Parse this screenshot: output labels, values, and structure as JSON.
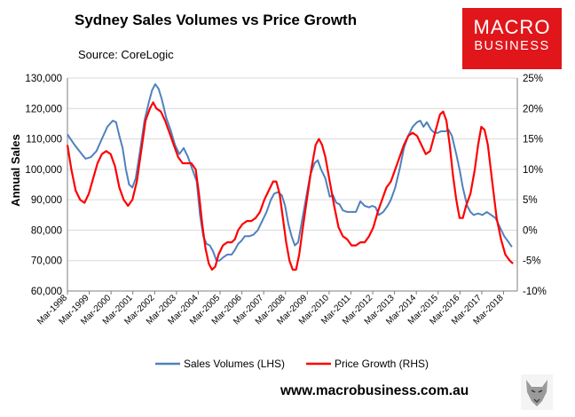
{
  "header": {
    "title": "Sydney Sales Volumes vs Price Growth",
    "source": "Source: CoreLogic"
  },
  "logo": {
    "line1": "MACRO",
    "line2": "BUSINESS"
  },
  "footer": {
    "url": "www.macrobusiness.com.au"
  },
  "colors": {
    "sales": "#4f81bd",
    "price": "#ff0000",
    "grid": "#d9d9d9",
    "axis": "#7f7f7f"
  },
  "chart_data": {
    "type": "line",
    "title": "Sydney Sales Volumes vs Price Growth",
    "ylabel": "Annual Sales",
    "y_left": {
      "min": 60000,
      "max": 130000,
      "step": 10000,
      "tick_labels": [
        "60,000",
        "70,000",
        "80,000",
        "90,000",
        "100,000",
        "110,000",
        "120,000",
        "130,000"
      ]
    },
    "y_right": {
      "min": -10,
      "max": 25,
      "step": 5,
      "tick_labels": [
        "-10%",
        "-5%",
        "0%",
        "5%",
        "10%",
        "15%",
        "20%",
        "25%"
      ]
    },
    "x_range": [
      1998.17,
      2018.8
    ],
    "x_tick_labels": [
      "Mar-1998",
      "Mar-1999",
      "Mar-2000",
      "Mar-2001",
      "Mar-2002",
      "Mar-2003",
      "Mar-2004",
      "Mar-2005",
      "Mar-2006",
      "Mar-2007",
      "Mar-2008",
      "Mar-2009",
      "Mar-2010",
      "Mar-2011",
      "Mar-2012",
      "Mar-2013",
      "Mar-2014",
      "Mar-2015",
      "Mar-2016",
      "Mar-2017",
      "Mar-2018"
    ],
    "gridlines": true,
    "legend_position": "bottom",
    "series": [
      {
        "name": "Sales Volumes (LHS)",
        "axis": "left",
        "points": [
          [
            1998.17,
            111500
          ],
          [
            1998.5,
            108000
          ],
          [
            1998.83,
            105000
          ],
          [
            1999.0,
            103500
          ],
          [
            1999.25,
            104000
          ],
          [
            1999.5,
            106000
          ],
          [
            1999.75,
            110000
          ],
          [
            2000.0,
            114000
          ],
          [
            2000.25,
            116000
          ],
          [
            2000.4,
            115500
          ],
          [
            2000.55,
            111000
          ],
          [
            2000.7,
            107000
          ],
          [
            2000.85,
            100000
          ],
          [
            2001.0,
            95000
          ],
          [
            2001.15,
            94000
          ],
          [
            2001.3,
            97000
          ],
          [
            2001.5,
            106000
          ],
          [
            2001.7,
            116000
          ],
          [
            2001.9,
            122000
          ],
          [
            2002.05,
            126000
          ],
          [
            2002.2,
            128000
          ],
          [
            2002.35,
            126500
          ],
          [
            2002.5,
            123000
          ],
          [
            2002.7,
            117000
          ],
          [
            2002.9,
            113000
          ],
          [
            2003.1,
            108000
          ],
          [
            2003.3,
            105000
          ],
          [
            2003.5,
            107000
          ],
          [
            2003.7,
            104000
          ],
          [
            2003.9,
            100000
          ],
          [
            2004.1,
            96000
          ],
          [
            2004.25,
            85000
          ],
          [
            2004.4,
            78000
          ],
          [
            2004.55,
            75500
          ],
          [
            2004.7,
            75000
          ],
          [
            2004.85,
            73000
          ],
          [
            2005.0,
            70000
          ],
          [
            2005.15,
            70000
          ],
          [
            2005.3,
            71000
          ],
          [
            2005.5,
            72000
          ],
          [
            2005.7,
            72000
          ],
          [
            2005.85,
            73500
          ],
          [
            2006.0,
            75500
          ],
          [
            2006.15,
            76500
          ],
          [
            2006.3,
            78000
          ],
          [
            2006.5,
            78000
          ],
          [
            2006.7,
            78500
          ],
          [
            2006.9,
            80000
          ],
          [
            2007.1,
            83000
          ],
          [
            2007.3,
            86000
          ],
          [
            2007.5,
            90000
          ],
          [
            2007.65,
            92000
          ],
          [
            2007.8,
            92500
          ],
          [
            2008.0,
            91500
          ],
          [
            2008.15,
            88000
          ],
          [
            2008.3,
            82000
          ],
          [
            2008.45,
            78000
          ],
          [
            2008.6,
            75000
          ],
          [
            2008.75,
            76000
          ],
          [
            2008.9,
            82000
          ],
          [
            2009.1,
            90000
          ],
          [
            2009.3,
            98000
          ],
          [
            2009.5,
            102000
          ],
          [
            2009.65,
            103000
          ],
          [
            2009.8,
            100000
          ],
          [
            2010.0,
            97000
          ],
          [
            2010.2,
            91000
          ],
          [
            2010.35,
            91500
          ],
          [
            2010.5,
            89000
          ],
          [
            2010.65,
            88500
          ],
          [
            2010.8,
            86500
          ],
          [
            2011.0,
            86000
          ],
          [
            2011.2,
            86000
          ],
          [
            2011.4,
            86000
          ],
          [
            2011.6,
            89500
          ],
          [
            2011.8,
            88000
          ],
          [
            2012.0,
            87500
          ],
          [
            2012.15,
            88000
          ],
          [
            2012.3,
            87500
          ],
          [
            2012.45,
            85000
          ],
          [
            2012.65,
            86000
          ],
          [
            2012.85,
            88000
          ],
          [
            2013.0,
            90000
          ],
          [
            2013.2,
            94000
          ],
          [
            2013.4,
            100000
          ],
          [
            2013.6,
            107000
          ],
          [
            2013.8,
            111000
          ],
          [
            2014.0,
            114000
          ],
          [
            2014.2,
            115500
          ],
          [
            2014.35,
            116000
          ],
          [
            2014.5,
            114000
          ],
          [
            2014.65,
            115500
          ],
          [
            2014.85,
            113000
          ],
          [
            2015.0,
            112000
          ],
          [
            2015.15,
            112000
          ],
          [
            2015.3,
            112500
          ],
          [
            2015.5,
            112500
          ],
          [
            2015.65,
            113000
          ],
          [
            2015.8,
            111000
          ],
          [
            2016.0,
            105000
          ],
          [
            2016.15,
            100000
          ],
          [
            2016.3,
            94000
          ],
          [
            2016.5,
            88000
          ],
          [
            2016.65,
            86000
          ],
          [
            2016.8,
            85000
          ],
          [
            2017.0,
            85500
          ],
          [
            2017.2,
            85000
          ],
          [
            2017.4,
            86000
          ],
          [
            2017.6,
            85000
          ],
          [
            2017.8,
            84000
          ],
          [
            2018.0,
            81000
          ],
          [
            2018.2,
            78000
          ],
          [
            2018.4,
            76000
          ],
          [
            2018.55,
            74500
          ]
        ]
      },
      {
        "name": "Price Growth (RHS)",
        "axis": "right",
        "points": [
          [
            1998.17,
            14
          ],
          [
            1998.35,
            10
          ],
          [
            1998.55,
            6.5
          ],
          [
            1998.75,
            5
          ],
          [
            1998.95,
            4.5
          ],
          [
            1999.15,
            6
          ],
          [
            1999.35,
            8.5
          ],
          [
            1999.55,
            11
          ],
          [
            1999.75,
            12.5
          ],
          [
            1999.95,
            13
          ],
          [
            2000.15,
            12.5
          ],
          [
            2000.35,
            10.5
          ],
          [
            2000.55,
            7
          ],
          [
            2000.75,
            5
          ],
          [
            2000.95,
            4
          ],
          [
            2001.15,
            5
          ],
          [
            2001.35,
            8
          ],
          [
            2001.55,
            13
          ],
          [
            2001.75,
            18
          ],
          [
            2001.95,
            20
          ],
          [
            2002.1,
            21
          ],
          [
            2002.25,
            20
          ],
          [
            2002.45,
            19.5
          ],
          [
            2002.65,
            18
          ],
          [
            2002.85,
            16
          ],
          [
            2003.05,
            14
          ],
          [
            2003.25,
            12
          ],
          [
            2003.45,
            11
          ],
          [
            2003.65,
            11
          ],
          [
            2003.85,
            11
          ],
          [
            2004.05,
            10
          ],
          [
            2004.2,
            6
          ],
          [
            2004.35,
            1
          ],
          [
            2004.5,
            -3
          ],
          [
            2004.65,
            -5.5
          ],
          [
            2004.8,
            -6.5
          ],
          [
            2004.95,
            -6
          ],
          [
            2005.1,
            -4
          ],
          [
            2005.3,
            -2.5
          ],
          [
            2005.5,
            -2
          ],
          [
            2005.7,
            -2
          ],
          [
            2005.85,
            -1.5
          ],
          [
            2006.0,
            0
          ],
          [
            2006.2,
            1
          ],
          [
            2006.4,
            1.5
          ],
          [
            2006.6,
            1.5
          ],
          [
            2006.8,
            2
          ],
          [
            2007.0,
            3
          ],
          [
            2007.2,
            5
          ],
          [
            2007.4,
            6.5
          ],
          [
            2007.6,
            8
          ],
          [
            2007.75,
            8
          ],
          [
            2007.9,
            6
          ],
          [
            2008.05,
            2
          ],
          [
            2008.2,
            -2
          ],
          [
            2008.35,
            -5
          ],
          [
            2008.5,
            -6.5
          ],
          [
            2008.65,
            -6.5
          ],
          [
            2008.8,
            -4
          ],
          [
            2008.95,
            0
          ],
          [
            2009.15,
            5
          ],
          [
            2009.35,
            10
          ],
          [
            2009.55,
            14
          ],
          [
            2009.7,
            15
          ],
          [
            2009.85,
            14
          ],
          [
            2010.0,
            12
          ],
          [
            2010.2,
            8
          ],
          [
            2010.4,
            4
          ],
          [
            2010.6,
            0.5
          ],
          [
            2010.8,
            -1
          ],
          [
            2011.0,
            -1.5
          ],
          [
            2011.2,
            -2.5
          ],
          [
            2011.4,
            -2.5
          ],
          [
            2011.6,
            -2
          ],
          [
            2011.8,
            -2
          ],
          [
            2012.0,
            -1
          ],
          [
            2012.2,
            0.5
          ],
          [
            2012.4,
            3
          ],
          [
            2012.6,
            5
          ],
          [
            2012.8,
            7
          ],
          [
            2013.0,
            8
          ],
          [
            2013.2,
            10
          ],
          [
            2013.4,
            12
          ],
          [
            2013.6,
            14
          ],
          [
            2013.8,
            15.5
          ],
          [
            2014.0,
            16
          ],
          [
            2014.2,
            15.5
          ],
          [
            2014.4,
            14
          ],
          [
            2014.6,
            12.5
          ],
          [
            2014.8,
            13
          ],
          [
            2014.95,
            15
          ],
          [
            2015.1,
            17
          ],
          [
            2015.25,
            19
          ],
          [
            2015.4,
            19.5
          ],
          [
            2015.55,
            18
          ],
          [
            2015.7,
            14
          ],
          [
            2015.85,
            9
          ],
          [
            2016.0,
            5
          ],
          [
            2016.15,
            2
          ],
          [
            2016.3,
            2
          ],
          [
            2016.45,
            4
          ],
          [
            2016.65,
            6
          ],
          [
            2016.85,
            10
          ],
          [
            2017.0,
            14
          ],
          [
            2017.15,
            17
          ],
          [
            2017.3,
            16.5
          ],
          [
            2017.45,
            14
          ],
          [
            2017.65,
            8
          ],
          [
            2017.85,
            2
          ],
          [
            2018.05,
            -1.5
          ],
          [
            2018.25,
            -4
          ],
          [
            2018.45,
            -5
          ],
          [
            2018.6,
            -5.5
          ]
        ]
      }
    ]
  }
}
